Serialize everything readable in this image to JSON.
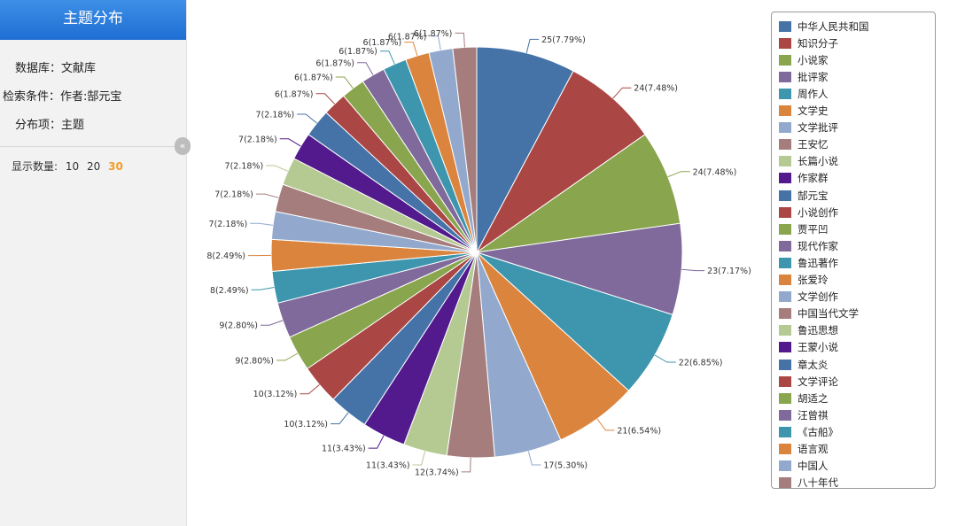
{
  "sidebar": {
    "title": "主题分布",
    "database_label": "数据库：文献库",
    "condition_label": "检索条件：作者:郜元宝",
    "facet_label": "分布项：主题",
    "count_label": "显示数量:",
    "count_options": [
      "10",
      "20",
      "30"
    ],
    "count_selected": "30",
    "collapse_glyph": "«"
  },
  "chart_data": {
    "type": "pie",
    "title": "",
    "legend_position": "right",
    "slices": [
      {
        "name": "中华人民共和国",
        "value": 25,
        "label": "25(7.79%)",
        "color": "#4572a7"
      },
      {
        "name": "知识分子",
        "value": 24,
        "label": "24(7.48%)",
        "color": "#aa4643"
      },
      {
        "name": "小说家",
        "value": 24,
        "label": "24(7.48%)",
        "color": "#89a54e"
      },
      {
        "name": "批评家",
        "value": 23,
        "label": "23(7.17%)",
        "color": "#80699b"
      },
      {
        "name": "周作人",
        "value": 22,
        "label": "22(6.85%)",
        "color": "#3d96ae"
      },
      {
        "name": "文学史",
        "value": 21,
        "label": "21(6.54%)",
        "color": "#db843d"
      },
      {
        "name": "文学批评",
        "value": 17,
        "label": "17(5.30%)",
        "color": "#92a8cd"
      },
      {
        "name": "王安忆",
        "value": 12,
        "label": "12(3.74%)",
        "color": "#a47d7c"
      },
      {
        "name": "长篇小说",
        "value": 11,
        "label": "11(3.43%)",
        "color": "#b5ca92"
      },
      {
        "name": "作家群",
        "value": 11,
        "label": "11(3.43%)",
        "color": "#521a8c"
      },
      {
        "name": "郜元宝",
        "value": 10,
        "label": "10(3.12%)",
        "color": "#4572a7"
      },
      {
        "name": "小说创作",
        "value": 10,
        "label": "10(3.12%)",
        "color": "#aa4643"
      },
      {
        "name": "贾平凹",
        "value": 9,
        "label": "9(2.80%)",
        "color": "#89a54e"
      },
      {
        "name": "现代作家",
        "value": 9,
        "label": "9(2.80%)",
        "color": "#80699b"
      },
      {
        "name": "鲁迅著作",
        "value": 8,
        "label": "8(2.49%)",
        "color": "#3d96ae"
      },
      {
        "name": "张爱玲",
        "value": 8,
        "label": "8(2.49%)",
        "color": "#db843d"
      },
      {
        "name": "文学创作",
        "value": 7,
        "label": "7(2.18%)",
        "color": "#92a8cd"
      },
      {
        "name": "中国当代文学",
        "value": 7,
        "label": "7(2.18%)",
        "color": "#a47d7c"
      },
      {
        "name": "鲁迅思想",
        "value": 7,
        "label": "7(2.18%)",
        "color": "#b5ca92"
      },
      {
        "name": "王蒙小说",
        "value": 7,
        "label": "7(2.18%)",
        "color": "#521a8c"
      },
      {
        "name": "章太炎",
        "value": 7,
        "label": "7(2.18%)",
        "color": "#4572a7"
      },
      {
        "name": "文学评论",
        "value": 6,
        "label": "6(1.87%)",
        "color": "#aa4643"
      },
      {
        "name": "胡适之",
        "value": 6,
        "label": "6(1.87%)",
        "color": "#89a54e"
      },
      {
        "name": "汪曾祺",
        "value": 6,
        "label": "6(1.87%)",
        "color": "#80699b"
      },
      {
        "name": "《古船》",
        "value": 6,
        "label": "6(1.87%)",
        "color": "#3d96ae"
      },
      {
        "name": "语言观",
        "value": 6,
        "label": "6(1.87%)",
        "color": "#db843d"
      },
      {
        "name": "中国人",
        "value": 6,
        "label": "6(1.87%)",
        "color": "#92a8cd"
      },
      {
        "name": "八十年代",
        "value": 6,
        "label": "6(1.87%)",
        "color": "#a47d7c"
      }
    ]
  }
}
